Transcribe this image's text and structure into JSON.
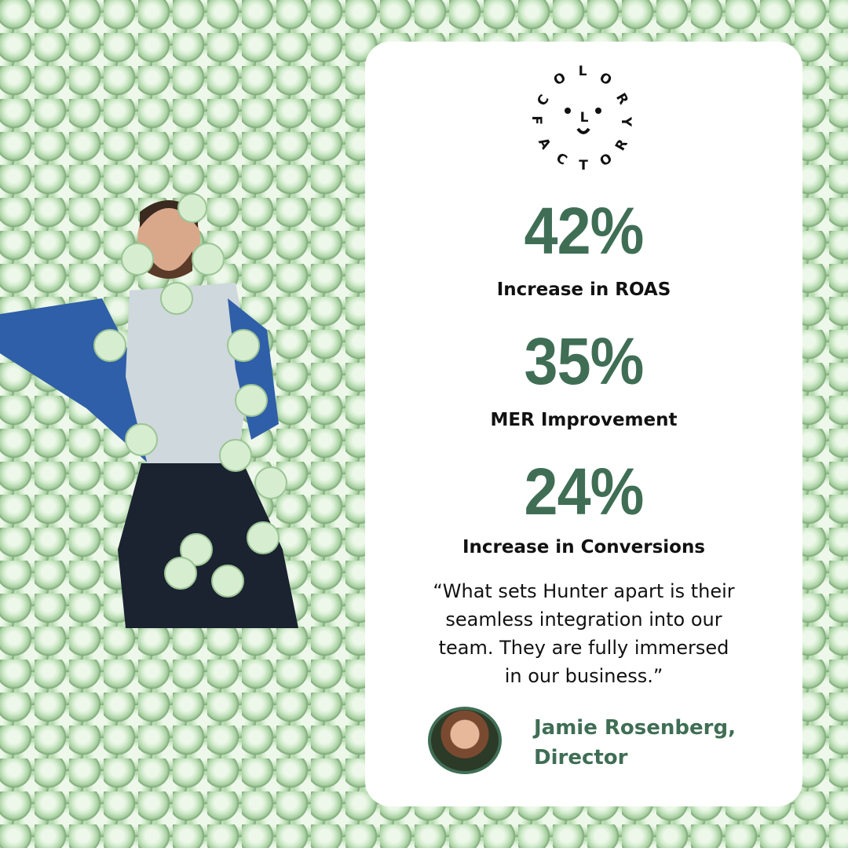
{
  "brand": {
    "logo_text": "COLOR FACTORY"
  },
  "stats": [
    {
      "value": "42%",
      "label": "Increase in ROAS"
    },
    {
      "value": "35%",
      "label": "MER Improvement"
    },
    {
      "value": "24%",
      "label": "Increase in Conversions"
    }
  ],
  "testimonial": {
    "quote_lines": [
      "“What sets Hunter apart is their",
      "seamless integration into our",
      "team. They are fully immersed",
      "in our business.”"
    ],
    "author_line1": "Jamie Rosenberg,",
    "author_line2": "Director"
  },
  "colors": {
    "accent": "#3f6e55",
    "card": "#ffffff",
    "background": "#b9dcb3"
  }
}
